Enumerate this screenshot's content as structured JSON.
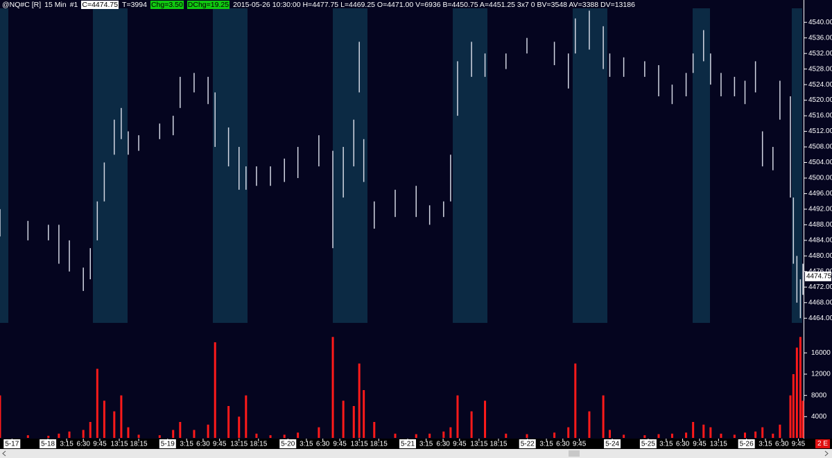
{
  "header": {
    "symbol": "@NQ#C [R]",
    "interval": "15 Min",
    "chart_no": "#1",
    "close": "C=4474.75",
    "ticks": "T=3994",
    "chg": "Chg=3.50",
    "dchg": "DChg=19.25",
    "details": "2015-05-26 10:30:00 H=4477.75 L=4469.25 O=4471.00 V=6936 B=4450.75 A=4451.25 3x7 0 BV=3548 AV=3388 DV=13186"
  },
  "status": "2 E",
  "chart_data": {
    "type": "range-bar",
    "x": [
      -9.6,
      -4.0,
      0.1,
      2.2,
      4.3,
      7.1,
      8.5,
      9.9,
      11.3,
      13.3,
      14.7,
      16.1,
      18.2,
      22.4,
      25.1,
      26.5,
      29.3,
      32.1,
      33.5,
      36.2,
      38.3,
      39.7,
      41.8,
      44.6,
      47.4,
      50.1,
      54.3,
      57.1,
      59.2,
      61.3,
      62.4,
      63.3,
      65.4,
      69.6,
      73.8,
      76.5,
      79.3,
      80.7,
      82.1,
      84.9,
      87.6,
      91.8,
      96.0,
      101.5,
      104.3,
      105.7,
      108.5,
      111.3,
      112.6,
      115.4,
      119.6,
      122.4,
      125.1,
      127.9,
      129.3,
      131.4,
      132.8,
      134.9,
      137.6,
      139.7,
      141.8,
      143.2,
      145.3,
      146.7,
      148.8,
      149.4,
      150.1,
      150.8,
      151.3
    ],
    "low": [
      4485,
      4484,
      4484,
      4478,
      4476,
      4471,
      4474,
      4484,
      4494,
      4506,
      4510,
      4506,
      4507,
      4510,
      4511,
      4518,
      4522,
      4519,
      4508,
      4503,
      4497,
      4497,
      4498,
      4498,
      4499,
      4500,
      4503,
      4482,
      4495,
      4503,
      4522,
      4499,
      4487,
      4490,
      4490,
      4488,
      4490,
      4494,
      4516,
      4526,
      4526,
      4528,
      4532,
      4529,
      4523,
      4532,
      4533,
      4528,
      4526,
      4526,
      4526,
      4521,
      4519,
      4521,
      4527,
      4530,
      4524,
      4521,
      4521,
      4519,
      4522,
      4503,
      4502,
      4515,
      4495,
      4478,
      4468,
      4464,
      4470
    ],
    "high": [
      4492,
      4489,
      4488,
      4488,
      4484,
      4477,
      4482,
      4494,
      4504,
      4515,
      4518,
      4512,
      4511,
      4514,
      4516,
      4526,
      4527,
      4526,
      4522,
      4513,
      4508,
      4503,
      4503,
      4503,
      4505,
      4508,
      4511,
      4507,
      4508,
      4515,
      4535,
      4510,
      4494,
      4497,
      4498,
      4493,
      4494,
      4506,
      4530,
      4535,
      4532,
      4532,
      4536,
      4535,
      4532,
      4541,
      4543,
      4539,
      4532,
      4531,
      4530,
      4529,
      4524,
      4527,
      4532,
      4538,
      4532,
      4527,
      4526,
      4525,
      4530,
      4512,
      4508,
      4525,
      4521,
      4495,
      4480,
      4474,
      4478
    ],
    "volume": [
      8000,
      500,
      400,
      800,
      1200,
      1500,
      3000,
      13000,
      7000,
      5000,
      8000,
      2000,
      600,
      500,
      1500,
      3000,
      1500,
      2500,
      18000,
      6000,
      4000,
      8000,
      800,
      500,
      600,
      1000,
      2000,
      19000,
      7000,
      6000,
      14000,
      9000,
      3000,
      800,
      700,
      800,
      1200,
      2000,
      8000,
      5000,
      7000,
      800,
      700,
      1000,
      2000,
      14000,
      5000,
      8000,
      1500,
      600,
      500,
      700,
      800,
      1000,
      3000,
      2500,
      2000,
      800,
      600,
      1000,
      1200,
      2000,
      800,
      2500,
      8000,
      12000,
      17000,
      19000,
      7000
    ],
    "color": "#d4d8e4",
    "volume_color": "#ff1a1a",
    "last_price": 4474.75,
    "xlim": [
      -9.6,
      151.3
    ],
    "ylim": [
      4462.8,
      4543.6
    ],
    "y2lim": [
      0,
      19000
    ],
    "yticks": [
      {
        "value": 4464,
        "label": "4464.00"
      },
      {
        "value": 4468,
        "label": "4468.00"
      },
      {
        "value": 4472,
        "label": "4472.00"
      },
      {
        "value": 4476,
        "label": "4476.00"
      },
      {
        "value": 4480,
        "label": "4480.00"
      },
      {
        "value": 4484,
        "label": "4484.00"
      },
      {
        "value": 4488,
        "label": "4488.00"
      },
      {
        "value": 4492,
        "label": "4492.00"
      },
      {
        "value": 4496,
        "label": "4496.00"
      },
      {
        "value": 4500,
        "label": "4500.00"
      },
      {
        "value": 4504,
        "label": "4504.00"
      },
      {
        "value": 4508,
        "label": "4508.00"
      },
      {
        "value": 4512,
        "label": "4512.00"
      },
      {
        "value": 4516,
        "label": "4516.00"
      },
      {
        "value": 4520,
        "label": "4520.00"
      },
      {
        "value": 4524,
        "label": "4524.00"
      },
      {
        "value": 4528,
        "label": "4528.00"
      },
      {
        "value": 4532,
        "label": "4532.00"
      },
      {
        "value": 4536,
        "label": "4536.00"
      },
      {
        "value": 4540,
        "label": "4540.00"
      }
    ],
    "y2ticks": [
      4000,
      8000,
      12000,
      16000
    ],
    "xticks": [
      {
        "value": -7.2,
        "label": "5-17"
      },
      {
        "value": 0,
        "label": "5-18"
      },
      {
        "value": 3.75,
        "label": "3:15"
      },
      {
        "value": 7.1,
        "label": "6:30"
      },
      {
        "value": 10.4,
        "label": "9:45"
      },
      {
        "value": 14.3,
        "label": "13:15"
      },
      {
        "value": 18.2,
        "label": "18:15"
      },
      {
        "value": 24.0,
        "label": "5-19"
      },
      {
        "value": 27.8,
        "label": "3:15"
      },
      {
        "value": 31.1,
        "label": "6:30"
      },
      {
        "value": 34.4,
        "label": "9:45"
      },
      {
        "value": 38.3,
        "label": "13:15"
      },
      {
        "value": 42.2,
        "label": "18:15"
      },
      {
        "value": 48.1,
        "label": "5-20"
      },
      {
        "value": 51.8,
        "label": "3:15"
      },
      {
        "value": 55.1,
        "label": "6:30"
      },
      {
        "value": 58.5,
        "label": "9:45"
      },
      {
        "value": 62.4,
        "label": "13:15"
      },
      {
        "value": 66.3,
        "label": "18:15"
      },
      {
        "value": 72.1,
        "label": "5-21"
      },
      {
        "value": 75.8,
        "label": "3:15"
      },
      {
        "value": 79.2,
        "label": "6:30"
      },
      {
        "value": 82.5,
        "label": "9:45"
      },
      {
        "value": 86.4,
        "label": "13:15"
      },
      {
        "value": 90.3,
        "label": "18:15"
      },
      {
        "value": 96.1,
        "label": "5-22"
      },
      {
        "value": 99.9,
        "label": "3:15"
      },
      {
        "value": 103.2,
        "label": "6:30"
      },
      {
        "value": 106.5,
        "label": "9:45"
      },
      {
        "value": 113.1,
        "label": "5-24"
      },
      {
        "value": 120.3,
        "label": "5-25"
      },
      {
        "value": 123.9,
        "label": "3:15"
      },
      {
        "value": 127.2,
        "label": "6:30"
      },
      {
        "value": 130.6,
        "label": "9:45"
      },
      {
        "value": 134.4,
        "label": "13:15"
      },
      {
        "value": 140.0,
        "label": "5-26"
      },
      {
        "value": 143.8,
        "label": "3:15"
      },
      {
        "value": 147.1,
        "label": "6:30"
      },
      {
        "value": 150.4,
        "label": "9:45"
      }
    ]
  }
}
